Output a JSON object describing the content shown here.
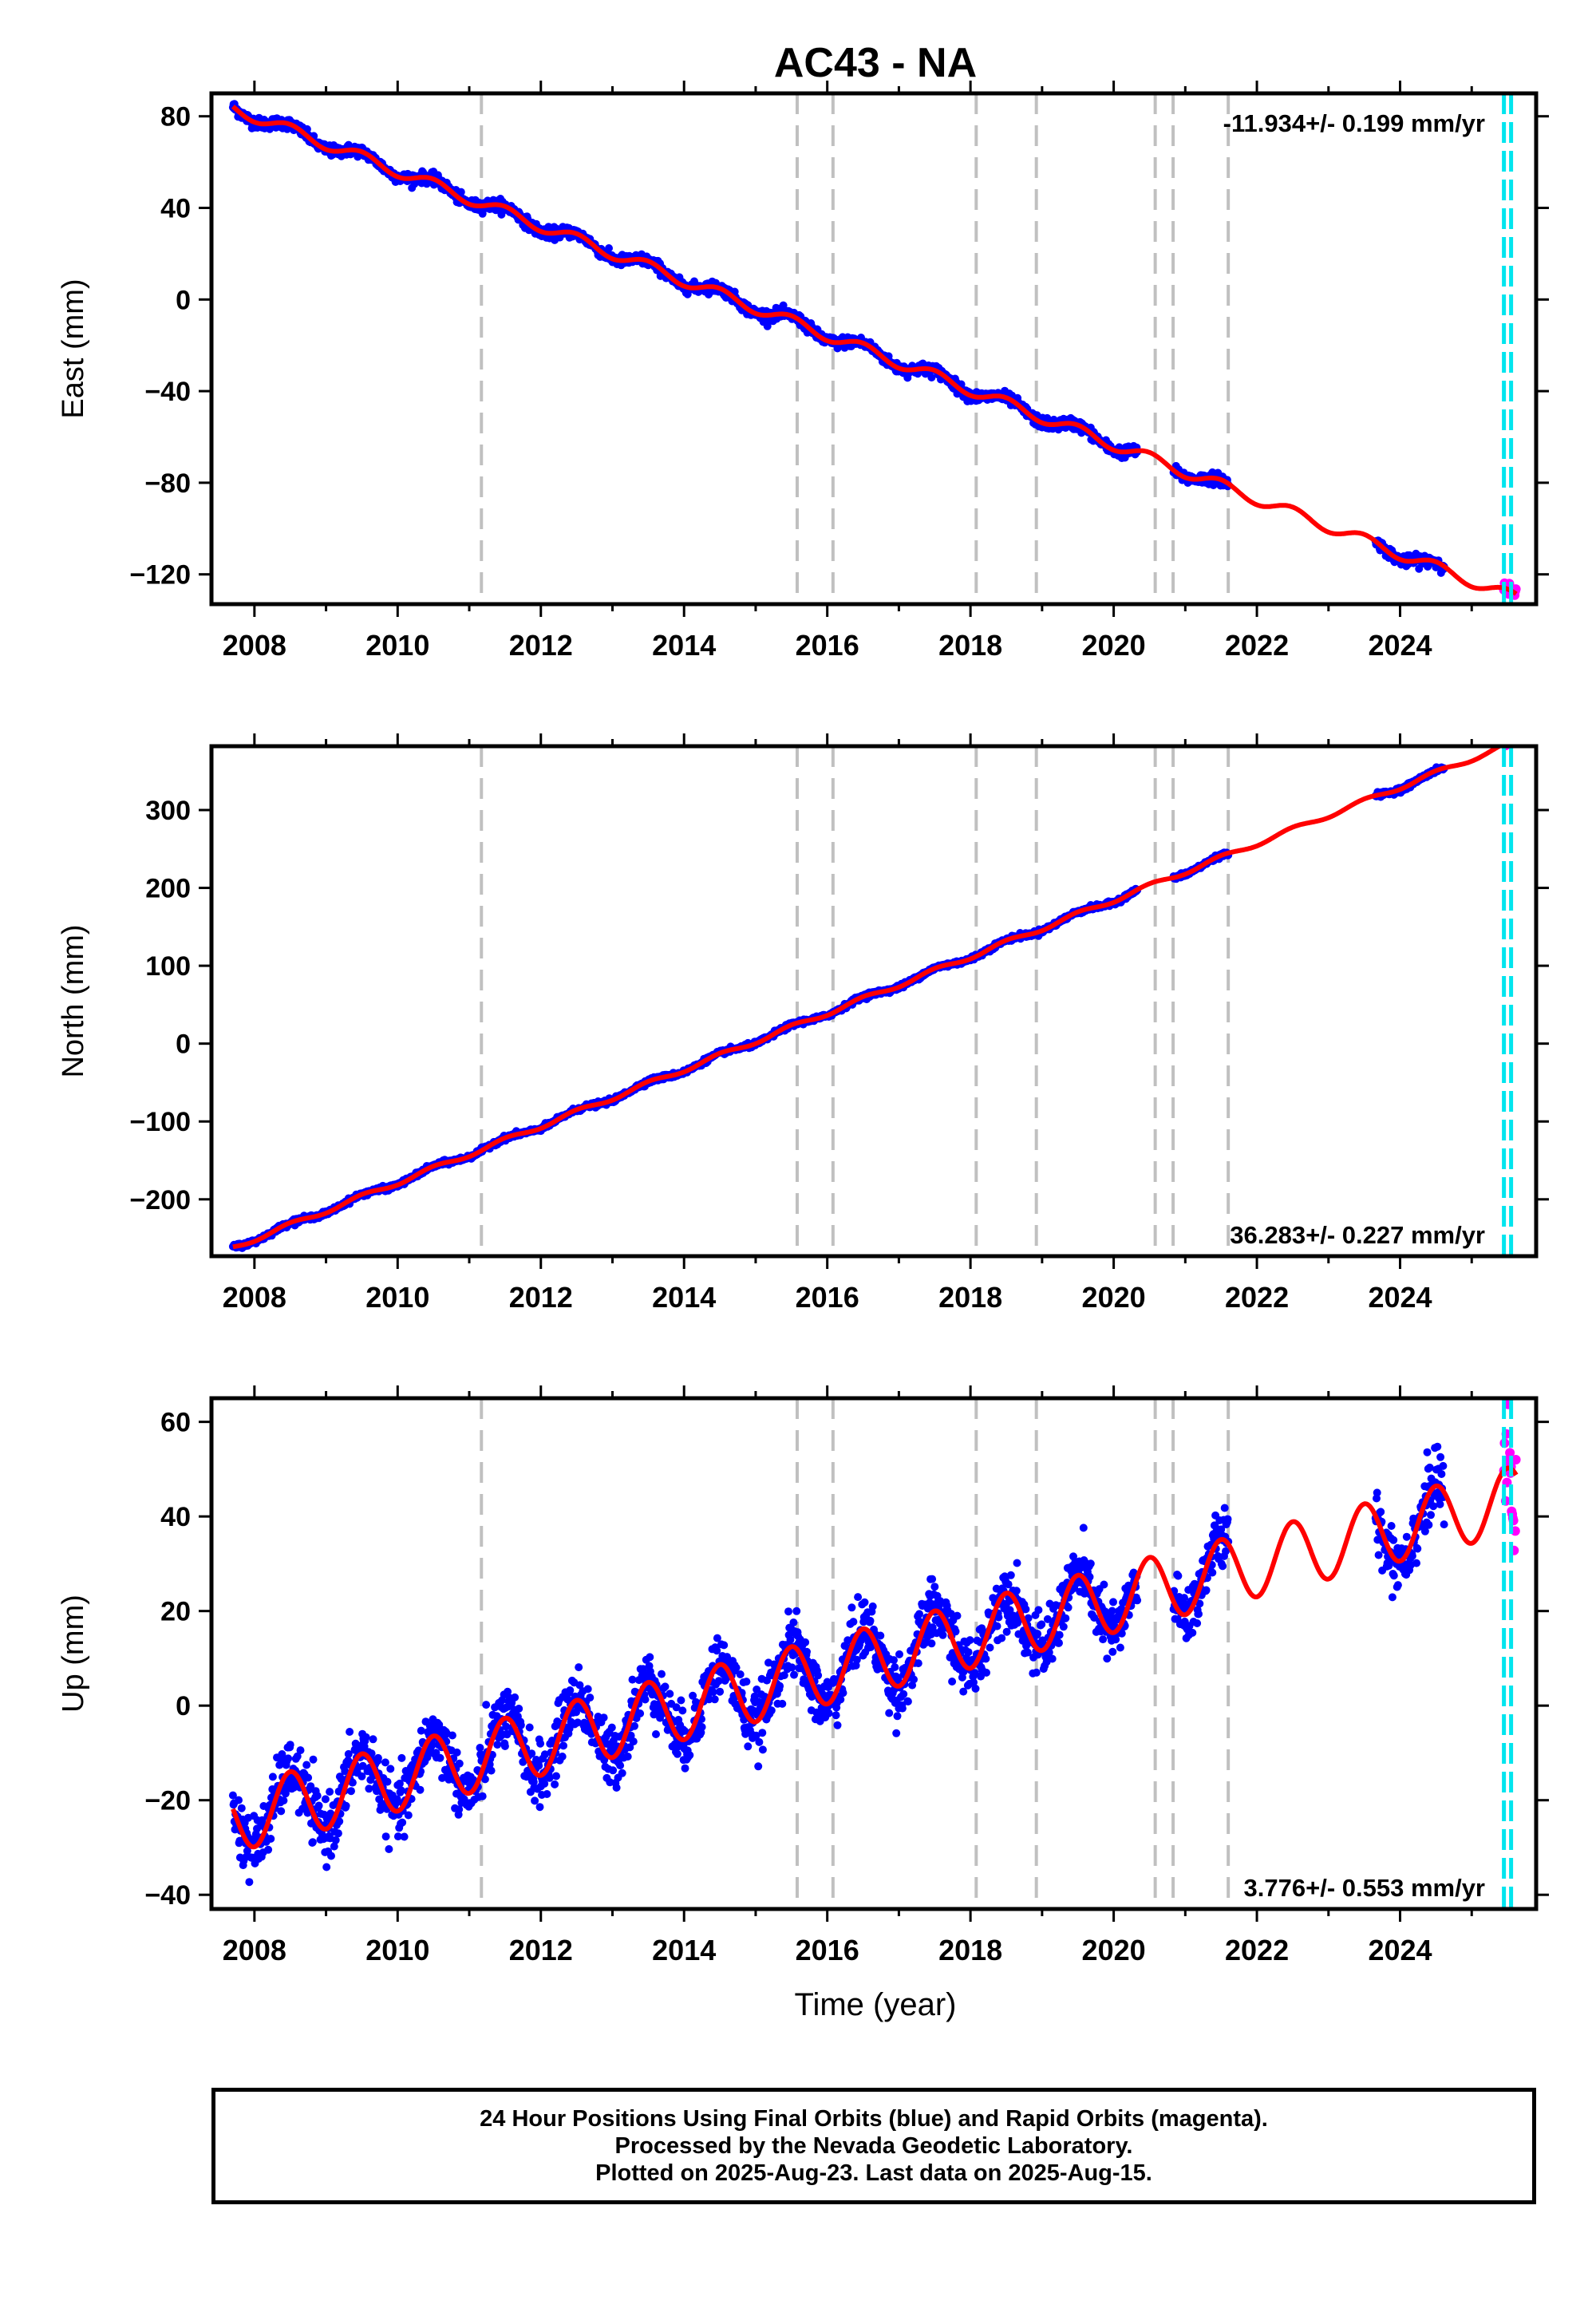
{
  "title": "AC43 - NA",
  "xlabel": "Time (year)",
  "colors": {
    "final_orbits": "#0000ff",
    "rapid_orbits": "#ff00ff",
    "model": "#ff0000",
    "event_line": "#c0c0c0",
    "recent_line": "#00e5ee"
  },
  "footer": {
    "line1": "24 Hour Positions Using Final Orbits (blue) and Rapid Orbits (magenta).",
    "line2": "Processed by the Nevada Geodetic Laboratory.",
    "line3": "Plotted on 2025-Aug-23. Last data on 2025-Aug-15."
  },
  "chart_data": [
    {
      "type": "scatter",
      "panel": "east",
      "ylabel": "East (mm)",
      "xlim": [
        2007.4,
        2025.9
      ],
      "ylim": [
        -133,
        90
      ],
      "yticks": [
        80,
        40,
        0,
        -40,
        -80,
        -120
      ],
      "xticks": [
        2008,
        2010,
        2012,
        2014,
        2016,
        2018,
        2020,
        2022,
        2024
      ],
      "rate_label": "-11.934+/- 0.199 mm/yr",
      "rate_label_position": "top-right",
      "trend": {
        "start_year": 2007.7,
        "start_value": 83.5,
        "rate_mm_per_yr": -11.934
      },
      "seasonal_amplitude_mm": 2.5,
      "event_lines": [
        2011.17,
        2015.58,
        2016.08,
        2018.08,
        2018.92,
        2020.58,
        2020.83,
        2021.6
      ],
      "recent_lines": [
        2025.45,
        2025.55
      ],
      "data_gaps": [
        [
          2020.33,
          2020.83
        ],
        [
          2021.6,
          2023.65
        ],
        [
          2024.62,
          2025.45
        ]
      ],
      "offsets": [
        {
          "year": 2016.08,
          "value_mm": 5
        },
        {
          "year": 2020.83,
          "value_mm": 3
        }
      ],
      "noise_mm": 1.2
    },
    {
      "type": "scatter",
      "panel": "north",
      "ylabel": "North (mm)",
      "xlim": [
        2007.4,
        2025.9
      ],
      "ylim": [
        -273,
        382
      ],
      "yticks": [
        300,
        200,
        100,
        0,
        -100,
        -200
      ],
      "xticks": [
        2008,
        2010,
        2012,
        2014,
        2016,
        2018,
        2020,
        2022,
        2024
      ],
      "rate_label": "36.283+/- 0.227 mm/yr",
      "rate_label_position": "bottom-right",
      "trend": {
        "start_year": 2007.7,
        "start_value": -262,
        "rate_mm_per_yr": 36.283
      },
      "seasonal_amplitude_mm": 3,
      "event_lines": [
        2011.17,
        2015.58,
        2016.08,
        2018.08,
        2018.92,
        2020.58,
        2020.83,
        2021.6
      ],
      "recent_lines": [
        2025.45,
        2025.55
      ],
      "data_gaps": [
        [
          2020.33,
          2020.83
        ],
        [
          2021.6,
          2023.65
        ],
        [
          2024.62,
          2025.45
        ]
      ],
      "offsets": [
        {
          "year": 2018.08,
          "value_mm": 5
        }
      ],
      "noise_mm": 1.5
    },
    {
      "type": "scatter",
      "panel": "up",
      "ylabel": "Up (mm)",
      "xlim": [
        2007.4,
        2025.9
      ],
      "ylim": [
        -43,
        65
      ],
      "yticks": [
        60,
        40,
        20,
        0,
        -20,
        -40
      ],
      "xticks": [
        2008,
        2010,
        2012,
        2014,
        2016,
        2018,
        2020,
        2022,
        2024
      ],
      "rate_label": "3.776+/- 0.553 mm/yr",
      "rate_label_position": "bottom-right",
      "trend": {
        "start_year": 2007.7,
        "start_value": -24,
        "rate_mm_per_yr": 3.776
      },
      "seasonal_amplitude_mm": 7,
      "event_lines": [
        2011.17,
        2015.58,
        2016.08,
        2018.08,
        2018.92,
        2020.58,
        2020.83,
        2021.6
      ],
      "recent_lines": [
        2025.45,
        2025.55
      ],
      "data_gaps": [
        [
          2020.33,
          2020.83
        ],
        [
          2021.6,
          2023.65
        ],
        [
          2024.62,
          2025.45
        ]
      ],
      "offsets": [],
      "noise_mm": 3.2
    }
  ]
}
